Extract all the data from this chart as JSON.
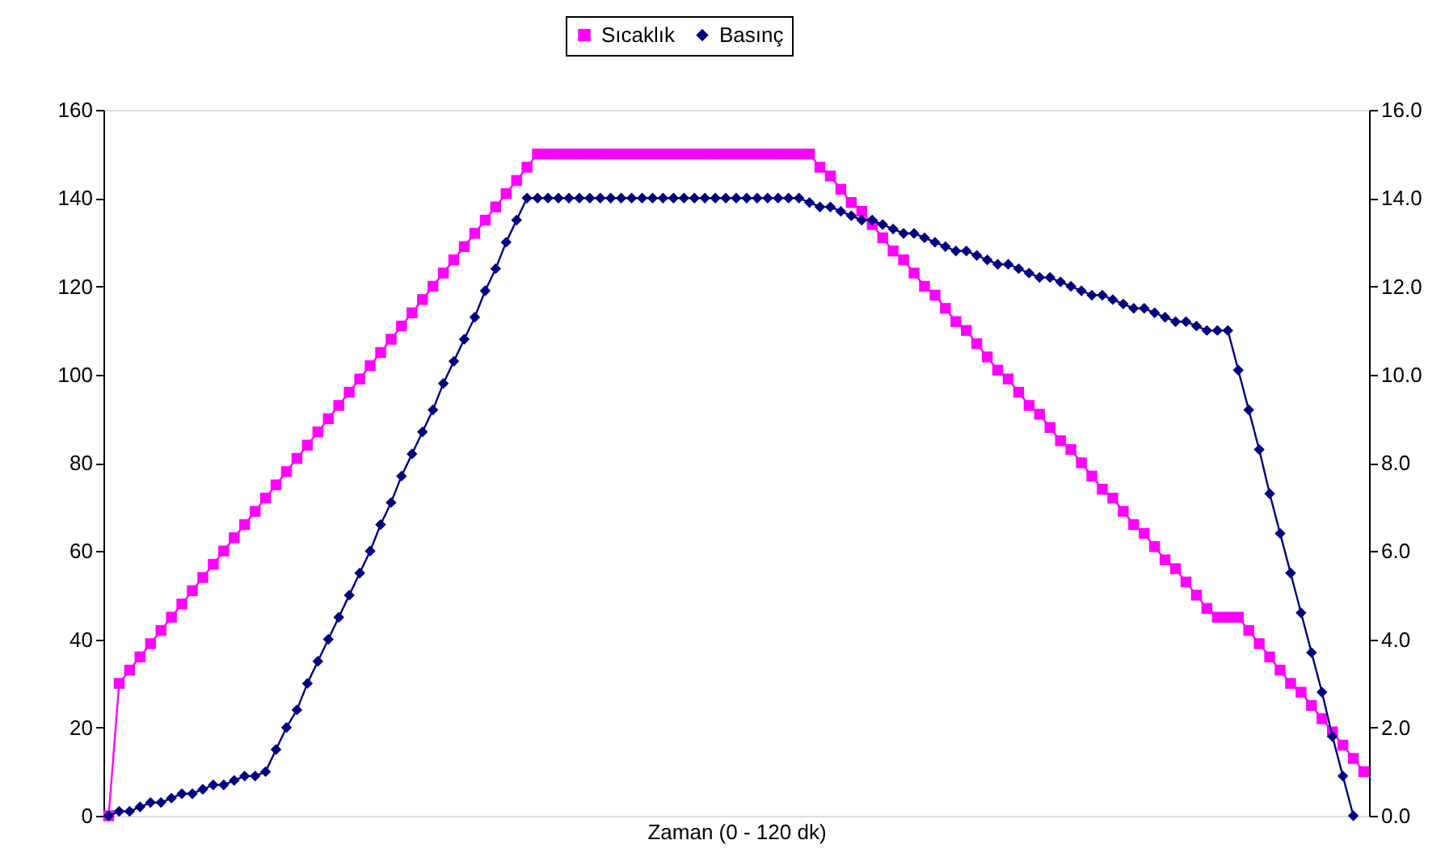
{
  "chart_data": {
    "type": "line",
    "xlabel": "Zaman (0 - 120 dk)",
    "categories": [
      null,
      null,
      null,
      null,
      null,
      null,
      null,
      null,
      null,
      null,
      null,
      null,
      null,
      null,
      null,
      null,
      null,
      null,
      null,
      null,
      null,
      null,
      null,
      null,
      null,
      null,
      null,
      null,
      null,
      null,
      null,
      null,
      null,
      null,
      null,
      null,
      null,
      null,
      null,
      null,
      null,
      null,
      null,
      null,
      null,
      null,
      null,
      null,
      null,
      null,
      null,
      null,
      null,
      null,
      null,
      null,
      null,
      null,
      null,
      null,
      null,
      null,
      null,
      null,
      null,
      null,
      null,
      null,
      null,
      null,
      null,
      null,
      null,
      null,
      null,
      null,
      null,
      null,
      null,
      null,
      null,
      null,
      null,
      null,
      null,
      null,
      null,
      null,
      null,
      null,
      null,
      null,
      null,
      null,
      null,
      null,
      null,
      null,
      null,
      null,
      null,
      null,
      null,
      null,
      null,
      null,
      null,
      null,
      null,
      null,
      null,
      null,
      null,
      null,
      null,
      null,
      null,
      null,
      null,
      null,
      null
    ],
    "series": [
      {
        "name": "Sıcaklık",
        "color": "#ff00ff",
        "marker": "square",
        "values": [
          0,
          30,
          33,
          36,
          39,
          42,
          45,
          48,
          51,
          54,
          57,
          60,
          63,
          66,
          69,
          72,
          75,
          78,
          81,
          84,
          87,
          90,
          93,
          96,
          99,
          102,
          105,
          108,
          111,
          114,
          117,
          120,
          123,
          126,
          129,
          132,
          135,
          138,
          141,
          144,
          147,
          150,
          150,
          150,
          150,
          150,
          150,
          150,
          150,
          150,
          150,
          150,
          150,
          150,
          150,
          150,
          150,
          150,
          150,
          150,
          150,
          150,
          150,
          150,
          150,
          150,
          150,
          150,
          147,
          145,
          142,
          139,
          137,
          134,
          131,
          128,
          126,
          123,
          120,
          118,
          115,
          112,
          110,
          107,
          104,
          101,
          99,
          96,
          93,
          91,
          88,
          85,
          83,
          80,
          77,
          74,
          72,
          69,
          66,
          64,
          61,
          58,
          56,
          53,
          50,
          47,
          45,
          45,
          45,
          42,
          39,
          36,
          33,
          30,
          28,
          25,
          22,
          19,
          16,
          13,
          10
        ]
      },
      {
        "name": "Basınç",
        "color": "#000080",
        "marker": "diamond",
        "axis": "y2",
        "values": [
          0,
          0.1,
          0.1,
          0.2,
          0.3,
          0.3,
          0.4,
          0.5,
          0.5,
          0.6,
          0.7,
          0.7,
          0.8,
          0.9,
          0.9,
          1.0,
          1.5,
          2.0,
          2.4,
          3.0,
          3.5,
          4.0,
          4.5,
          5.0,
          5.5,
          6.0,
          6.6,
          7.1,
          7.7,
          8.2,
          8.7,
          9.2,
          9.8,
          10.3,
          10.8,
          11.3,
          11.9,
          12.4,
          13.0,
          13.5,
          14.0,
          14.0,
          14.0,
          14.0,
          14.0,
          14.0,
          14.0,
          14.0,
          14.0,
          14.0,
          14.0,
          14.0,
          14.0,
          14.0,
          14.0,
          14.0,
          14.0,
          14.0,
          14.0,
          14.0,
          14.0,
          14.0,
          14.0,
          14.0,
          14.0,
          14.0,
          14.0,
          13.9,
          13.8,
          13.8,
          13.7,
          13.6,
          13.5,
          13.5,
          13.4,
          13.3,
          13.2,
          13.2,
          13.1,
          13.0,
          12.9,
          12.8,
          12.8,
          12.7,
          12.6,
          12.5,
          12.5,
          12.4,
          12.3,
          12.2,
          12.2,
          12.1,
          12.0,
          11.9,
          11.8,
          11.8,
          11.7,
          11.6,
          11.5,
          11.5,
          11.4,
          11.3,
          11.2,
          11.2,
          11.1,
          11.0,
          11.0,
          11.0,
          10.1,
          9.2,
          8.3,
          7.3,
          6.4,
          5.5,
          4.6,
          3.7,
          2.8,
          1.8,
          0.9,
          0,
          null
        ]
      }
    ],
    "ylim": [
      0,
      160
    ],
    "yticks": [
      0,
      20,
      40,
      60,
      80,
      100,
      120,
      140,
      160
    ],
    "y2lim": [
      0,
      16
    ],
    "y2ticks": [
      {
        "value": 0,
        "label": "0.0"
      },
      {
        "value": 2,
        "label": "2.0"
      },
      {
        "value": 4,
        "label": "4.0"
      },
      {
        "value": 6,
        "label": "6.0"
      },
      {
        "value": 8,
        "label": "8.0"
      },
      {
        "value": 10,
        "label": "10.0"
      },
      {
        "value": 12,
        "label": "12.0"
      },
      {
        "value": 14,
        "label": "14.0"
      },
      {
        "value": 16,
        "label": "16.0"
      }
    ],
    "legend": "top",
    "grid": false,
    "tick_labels": "y"
  }
}
